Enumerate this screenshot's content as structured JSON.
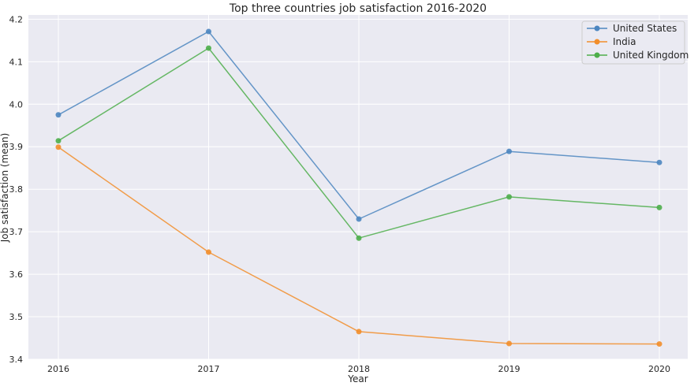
{
  "chart_data": {
    "type": "line",
    "title": "Top three countries job satisfaction 2016-2020",
    "xlabel": "Year",
    "ylabel": "Job satisfaction (mean)",
    "x": [
      2016,
      2017,
      2018,
      2019,
      2020
    ],
    "x_tick_labels": [
      "2016",
      "2017",
      "2018",
      "2019",
      "2020"
    ],
    "ylim": [
      3.4,
      4.21
    ],
    "y_ticks": [
      3.4,
      3.5,
      3.6,
      3.7,
      3.8,
      3.9,
      4.0,
      4.1,
      4.2
    ],
    "y_tick_labels": [
      "3.4",
      "3.5",
      "3.6",
      "3.7",
      "3.8",
      "3.9",
      "4.0",
      "4.1",
      "4.2"
    ],
    "grid": true,
    "legend_position": "top-right",
    "background_color": "#eaeaf2",
    "series": [
      {
        "name": "United States",
        "color": "#4c86c0",
        "values": [
          3.975,
          4.171,
          3.73,
          3.889,
          3.863
        ]
      },
      {
        "name": "India",
        "color": "#f28e2b",
        "values": [
          3.899,
          3.652,
          3.465,
          3.437,
          3.436
        ]
      },
      {
        "name": "United Kingdom",
        "color": "#4eae4b",
        "values": [
          3.914,
          4.132,
          3.685,
          3.782,
          3.757
        ]
      }
    ]
  }
}
